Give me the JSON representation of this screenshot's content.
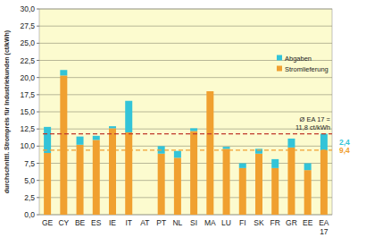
{
  "chart_data": {
    "type": "bar",
    "stacked": true,
    "y_label": "durchschnittl. Strompreis für Industriekunden (ct/kWh)",
    "categories": [
      "GE",
      "CY",
      "BE",
      "ES",
      "IE",
      "IT",
      "AT",
      "PT",
      "NL",
      "SI",
      "MA",
      "LU",
      "FI",
      "SK",
      "FR",
      "GR",
      "EE",
      "EA 17"
    ],
    "series": [
      {
        "name": "Stromlieferung",
        "color": "#f0a030",
        "values": [
          9.0,
          20.3,
          10.2,
          10.9,
          12.6,
          12.0,
          null,
          8.9,
          8.3,
          12.2,
          18.0,
          9.6,
          6.8,
          8.9,
          6.8,
          9.8,
          6.5,
          9.4
        ]
      },
      {
        "name": "Abgaben",
        "color": "#33c4d8",
        "values": [
          3.8,
          0.8,
          1.2,
          0.6,
          0.3,
          4.6,
          null,
          1.1,
          1.0,
          0.4,
          0.0,
          0.3,
          0.7,
          0.7,
          1.3,
          1.3,
          1.0,
          2.4
        ]
      }
    ],
    "ylim": [
      0,
      30
    ],
    "yticks": [
      {
        "value": 0,
        "label": "0,0"
      },
      {
        "value": 2.5,
        "label": "2,5"
      },
      {
        "value": 5,
        "label": "5,0"
      },
      {
        "value": 7.5,
        "label": "7,5"
      },
      {
        "value": 10,
        "label": "10,0"
      },
      {
        "value": 12.5,
        "label": "12,5"
      },
      {
        "value": 15,
        "label": "15,0"
      },
      {
        "value": 17.5,
        "label": "17,5"
      },
      {
        "value": 20,
        "label": "20,0"
      },
      {
        "value": 22.5,
        "label": "22,5"
      },
      {
        "value": 25,
        "label": "25,0"
      },
      {
        "value": 27.5,
        "label": "27,5"
      },
      {
        "value": 30,
        "label": "30,0"
      }
    ],
    "grid": true,
    "legend": "right",
    "reference_lines": [
      {
        "value": 11.8,
        "label": [
          "Ø EA 17 =",
          "11,8 ct/kWh"
        ],
        "color": "#c0392b",
        "line_style": "dashed"
      },
      {
        "value": 9.4,
        "label": "9,4",
        "color": "#f0a030",
        "line_style": "dashed"
      }
    ],
    "annotations": [
      {
        "value": 2.4,
        "label": "2,4",
        "color": "#33c4d8"
      }
    ]
  }
}
